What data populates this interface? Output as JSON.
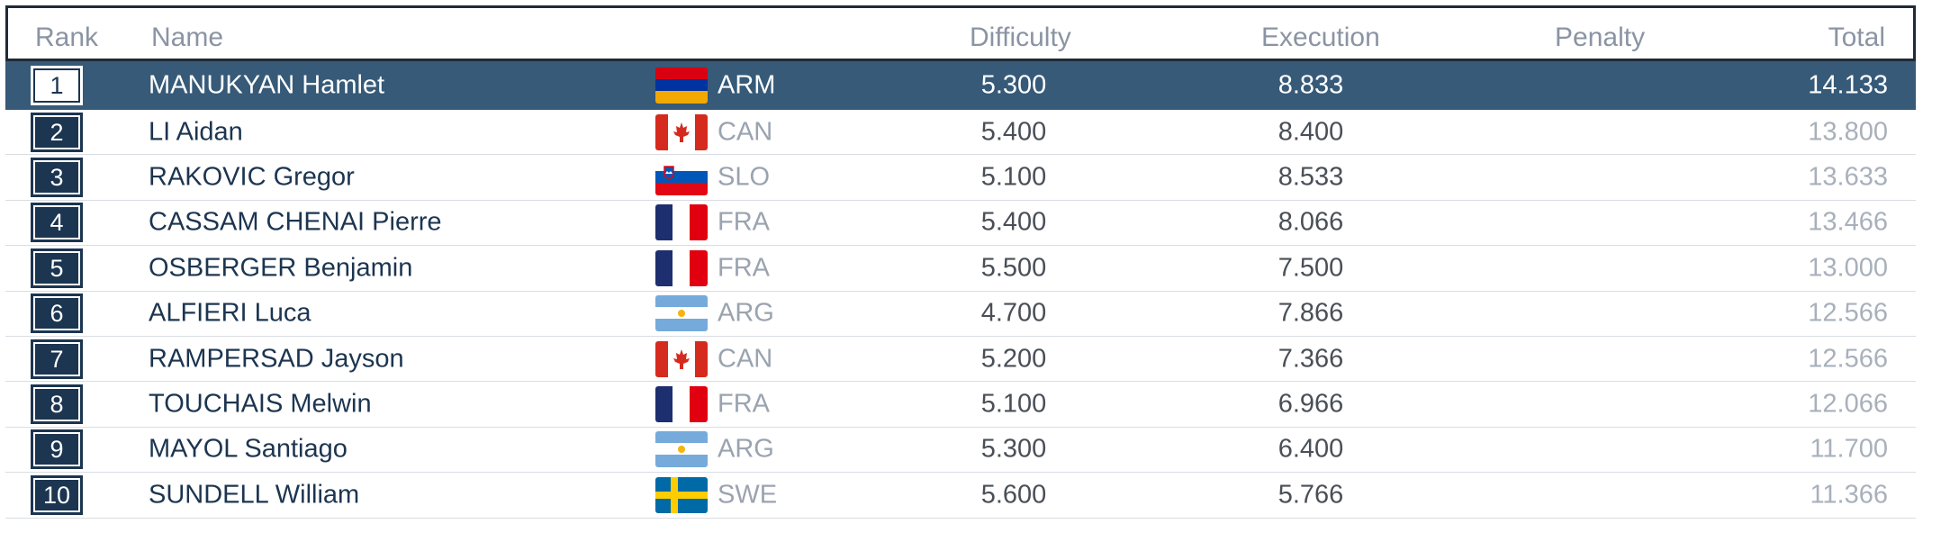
{
  "header": {
    "rank": "Rank",
    "name": "Name",
    "difficulty": "Difficulty",
    "execution": "Execution",
    "penalty": "Penalty",
    "total": "Total"
  },
  "colors": {
    "header_border": "#1f2a36",
    "highlight_row": "#365a78",
    "badge": "#1c3550",
    "muted_text": "#9aa3b0"
  },
  "rows": [
    {
      "rank": "1",
      "name": "MANUKYAN Hamlet",
      "flag": "armenia-flag",
      "country": "ARM",
      "difficulty": "5.300",
      "execution": "8.833",
      "total": "14.133"
    },
    {
      "rank": "2",
      "name": "LI Aidan",
      "flag": "canada-flag",
      "country": "CAN",
      "difficulty": "5.400",
      "execution": "8.400",
      "total": "13.800"
    },
    {
      "rank": "3",
      "name": "RAKOVIC Gregor",
      "flag": "slovenia-flag",
      "country": "SLO",
      "difficulty": "5.100",
      "execution": "8.533",
      "total": "13.633"
    },
    {
      "rank": "4",
      "name": "CASSAM CHENAI Pierre",
      "flag": "france-flag",
      "country": "FRA",
      "difficulty": "5.400",
      "execution": "8.066",
      "total": "13.466"
    },
    {
      "rank": "5",
      "name": "OSBERGER Benjamin",
      "flag": "france-flag",
      "country": "FRA",
      "difficulty": "5.500",
      "execution": "7.500",
      "total": "13.000"
    },
    {
      "rank": "6",
      "name": "ALFIERI Luca",
      "flag": "argentina-flag",
      "country": "ARG",
      "difficulty": "4.700",
      "execution": "7.866",
      "total": "12.566"
    },
    {
      "rank": "7",
      "name": "RAMPERSAD Jayson",
      "flag": "canada-flag",
      "country": "CAN",
      "difficulty": "5.200",
      "execution": "7.366",
      "total": "12.566"
    },
    {
      "rank": "8",
      "name": "TOUCHAIS Melwin",
      "flag": "france-flag",
      "country": "FRA",
      "difficulty": "5.100",
      "execution": "6.966",
      "total": "12.066"
    },
    {
      "rank": "9",
      "name": "MAYOL Santiago",
      "flag": "argentina-flag",
      "country": "ARG",
      "difficulty": "5.300",
      "execution": "6.400",
      "total": "11.700"
    },
    {
      "rank": "10",
      "name": "SUNDELL William",
      "flag": "sweden-flag",
      "country": "SWE",
      "difficulty": "5.600",
      "execution": "5.766",
      "total": "11.366"
    }
  ]
}
